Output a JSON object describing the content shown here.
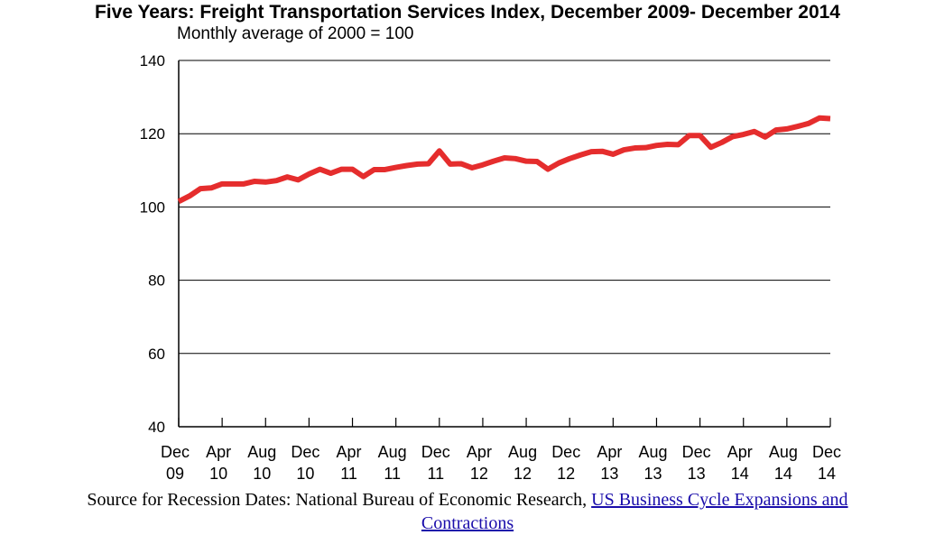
{
  "chart_data": {
    "type": "line",
    "title": "Five Years: Freight Transportation Services Index, December 2009- December 2014",
    "subtitle": "Monthly average of 2000 = 100",
    "xlabel": "",
    "ylabel": "",
    "ylim": [
      40,
      140
    ],
    "yticks": [
      "40",
      "60",
      "80",
      "100",
      "120",
      "140"
    ],
    "grid": true,
    "x": [
      "Dec 09",
      "Jan 10",
      "Feb 10",
      "Mar 10",
      "Apr 10",
      "May 10",
      "Jun 10",
      "Jul 10",
      "Aug 10",
      "Sep 10",
      "Oct 10",
      "Nov 10",
      "Dec 10",
      "Jan 11",
      "Feb 11",
      "Mar 11",
      "Apr 11",
      "May 11",
      "Jun 11",
      "Jul 11",
      "Aug 11",
      "Sep 11",
      "Oct 11",
      "Nov 11",
      "Dec 11",
      "Jan 12",
      "Feb 12",
      "Mar 12",
      "Apr 12",
      "May 12",
      "Jun 12",
      "Jul 12",
      "Aug 12",
      "Sep 12",
      "Oct 12",
      "Nov 12",
      "Dec 12",
      "Jan 13",
      "Feb 13",
      "Mar 13",
      "Apr 13",
      "May 13",
      "Jun 13",
      "Jul 13",
      "Aug 13",
      "Sep 13",
      "Oct 13",
      "Nov 13",
      "Dec 13",
      "Jan 14",
      "Feb 14",
      "Mar 14",
      "Apr 14",
      "May 14",
      "Jun 14",
      "Jul 14",
      "Aug 14",
      "Sep 14",
      "Oct 14",
      "Nov 14",
      "Dec 14"
    ],
    "xtick_labels": [
      {
        "top": "Dec",
        "bottom": "09"
      },
      {
        "top": "Apr",
        "bottom": "10"
      },
      {
        "top": "Aug",
        "bottom": "10"
      },
      {
        "top": "Dec",
        "bottom": "10"
      },
      {
        "top": "Apr",
        "bottom": "11"
      },
      {
        "top": "Aug",
        "bottom": "11"
      },
      {
        "top": "Dec",
        "bottom": "11"
      },
      {
        "top": "Apr",
        "bottom": "12"
      },
      {
        "top": "Aug",
        "bottom": "12"
      },
      {
        "top": "Dec",
        "bottom": "12"
      },
      {
        "top": "Apr",
        "bottom": "13"
      },
      {
        "top": "Aug",
        "bottom": "13"
      },
      {
        "top": "Dec",
        "bottom": "13"
      },
      {
        "top": "Apr",
        "bottom": "14"
      },
      {
        "top": "Aug",
        "bottom": "14"
      },
      {
        "top": "Dec",
        "bottom": "14"
      }
    ],
    "series": [
      {
        "color": "#e52d2d",
        "values": [
          101.5,
          103.0,
          105.0,
          105.2,
          106.3,
          106.3,
          106.3,
          107.0,
          106.8,
          107.2,
          108.2,
          107.4,
          109.0,
          110.3,
          109.2,
          110.3,
          110.3,
          108.3,
          110.2,
          110.2,
          110.8,
          111.3,
          111.7,
          111.8,
          115.3,
          111.7,
          111.8,
          110.7,
          111.5,
          112.5,
          113.4,
          113.2,
          112.5,
          112.4,
          110.3,
          112.0,
          113.2,
          114.2,
          115.1,
          115.2,
          114.4,
          115.6,
          116.1,
          116.2,
          116.8,
          117.1,
          117.0,
          119.5,
          119.5,
          116.3,
          117.6,
          119.2,
          119.8,
          120.6,
          119.1,
          121.0,
          121.3,
          122.0,
          122.8,
          124.3,
          124.1
        ]
      }
    ]
  },
  "source": {
    "text": "Source for Recession Dates: National Bureau of Economic Research, ",
    "link_label_1": "US Business Cycle Expansions and",
    "link_label_2": "Contractions"
  }
}
